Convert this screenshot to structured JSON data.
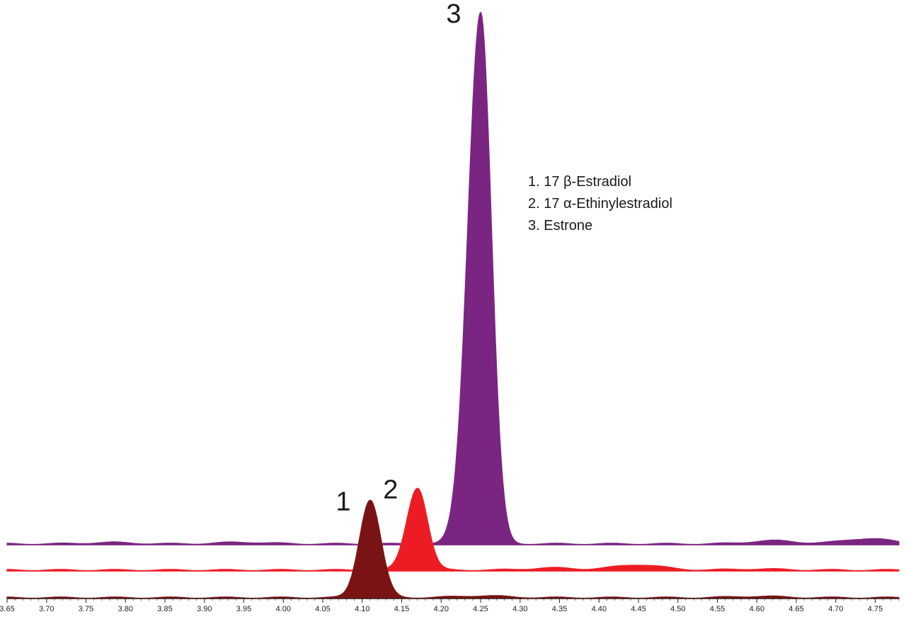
{
  "chart_data": {
    "type": "area",
    "title": "",
    "xlabel": "",
    "ylabel": "",
    "xlim": [
      3.65,
      4.78
    ],
    "x_ticks": [
      "3.65",
      "3.70",
      "3.75",
      "3.80",
      "3.85",
      "3.90",
      "3.95",
      "4.00",
      "4.05",
      "4.10",
      "4.15",
      "4.20",
      "4.25",
      "4.30",
      "4.35",
      "4.40",
      "4.45",
      "4.50",
      "4.55",
      "4.60",
      "4.65",
      "4.70",
      "4.75"
    ],
    "x_tick_values": [
      3.65,
      3.7,
      3.75,
      3.8,
      3.85,
      3.9,
      3.95,
      4.0,
      4.05,
      4.1,
      4.15,
      4.2,
      4.25,
      4.3,
      4.35,
      4.4,
      4.45,
      4.5,
      4.55,
      4.6,
      4.65,
      4.7,
      4.75
    ],
    "grid": false,
    "legend_position": "top-right",
    "legend": [
      "1. 17 β-Estradiol",
      "2. 17 α-Ethinylestradiol",
      "3. Estrone"
    ],
    "series": [
      {
        "peak_label": "3",
        "color": "#7B2582",
        "apex_x": 4.25,
        "apex_height": 100,
        "half_width_left": 0.019,
        "half_width_right": 0.016,
        "baseline_bumps": [
          [
            3.78,
            0.25
          ],
          [
            3.95,
            0.3
          ],
          [
            4.62,
            0.6
          ],
          [
            4.74,
            1.0
          ]
        ]
      },
      {
        "peak_label": "2",
        "color": "#ED1C24",
        "apex_x": 4.17,
        "apex_height": 15.5,
        "half_width_left": 0.016,
        "half_width_right": 0.015,
        "baseline_bumps": [
          [
            4.45,
            1.0
          ],
          [
            4.34,
            0.4
          ],
          [
            4.6,
            0.2
          ]
        ]
      },
      {
        "peak_label": "1",
        "color": "#7A1414",
        "apex_x": 4.11,
        "apex_height": 18.4,
        "half_width_left": 0.016,
        "half_width_right": 0.016,
        "baseline_bumps": [
          [
            4.25,
            0.35
          ],
          [
            4.6,
            0.25
          ]
        ]
      }
    ]
  }
}
